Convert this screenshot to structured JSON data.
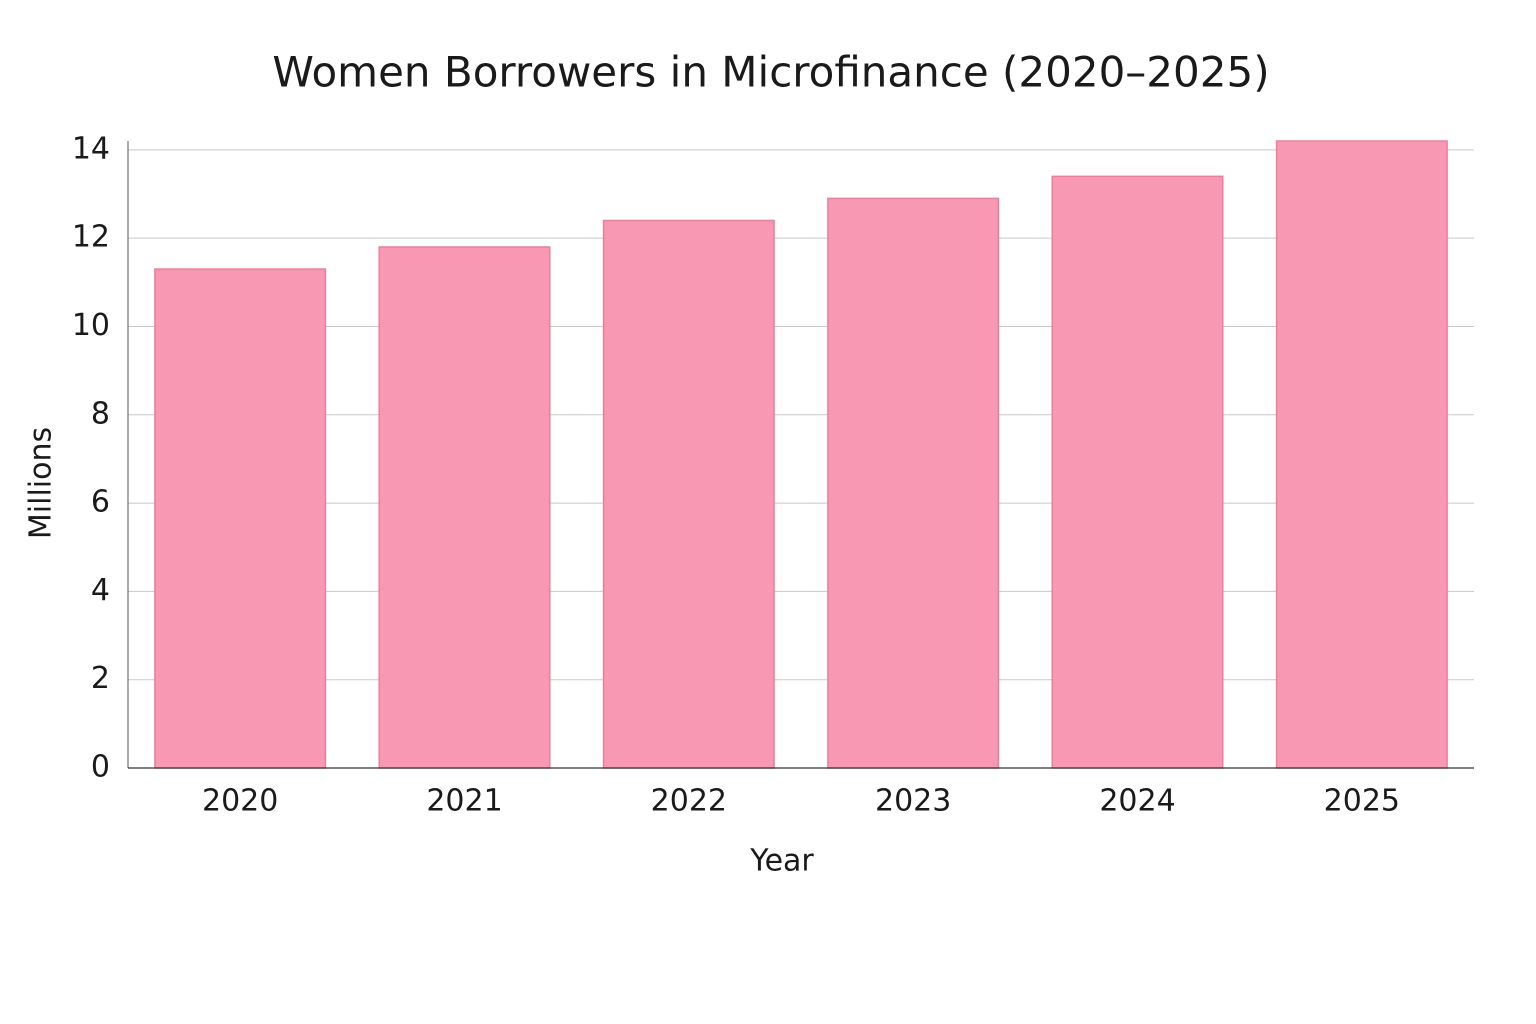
{
  "chart_data": {
    "type": "bar",
    "title": "Women Borrowers in Microfinance (2020–2025)",
    "x_label": "Year",
    "y_label": "Millions",
    "categories": [
      "2020",
      "2021",
      "2022",
      "2023",
      "2024",
      "2025"
    ],
    "values": [
      11.3,
      11.8,
      12.4,
      12.9,
      13.4,
      14.2
    ],
    "color": "#f898b2",
    "ylim": [
      0,
      14.2
    ],
    "yticks": [
      0,
      2,
      4,
      6,
      8,
      10,
      12,
      14
    ],
    "grid": true
  }
}
